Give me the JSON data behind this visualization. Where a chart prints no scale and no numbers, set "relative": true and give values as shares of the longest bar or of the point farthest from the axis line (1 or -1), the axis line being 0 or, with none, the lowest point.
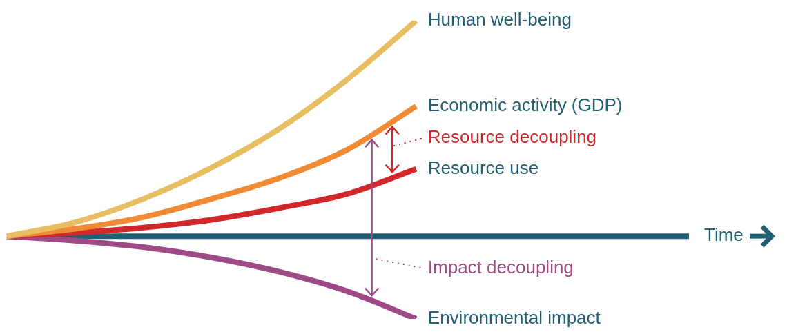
{
  "chart_data": {
    "type": "line",
    "relative": true,
    "xlabel": "Time",
    "categories": [
      null,
      null,
      null,
      null,
      null,
      null,
      null,
      null,
      null,
      null,
      null
    ],
    "ref_lines": [
      {
        "axis": "y",
        "value": 0,
        "color": "#235f72"
      }
    ],
    "marker": "none",
    "line_style": "solid",
    "series": [
      {
        "name": "Human well-being",
        "color": "#e8be62",
        "values": [
          0,
          0.064,
          0.173,
          0.318,
          0.5,
          0.73,
          1,
          null,
          null,
          null,
          null
        ]
      },
      {
        "name": "Economic activity (GDP)",
        "color": "#f08a34",
        "values": [
          0,
          0.034,
          0.088,
          0.173,
          0.27,
          0.403,
          0.603,
          null,
          null,
          null,
          null
        ]
      },
      {
        "name": "Resource use",
        "color": "#d2282b",
        "values": [
          0,
          0.016,
          0.04,
          0.076,
          0.131,
          0.197,
          0.312,
          null,
          null,
          null,
          null
        ]
      },
      {
        "name": "Environmental impact",
        "color": "#9e4a86",
        "values": [
          0,
          -0.021,
          -0.051,
          -0.099,
          -0.166,
          -0.257,
          -0.384,
          null,
          null,
          null,
          null
        ]
      }
    ],
    "annotations": [
      "Resource decoupling",
      "Impact decoupling"
    ]
  }
}
